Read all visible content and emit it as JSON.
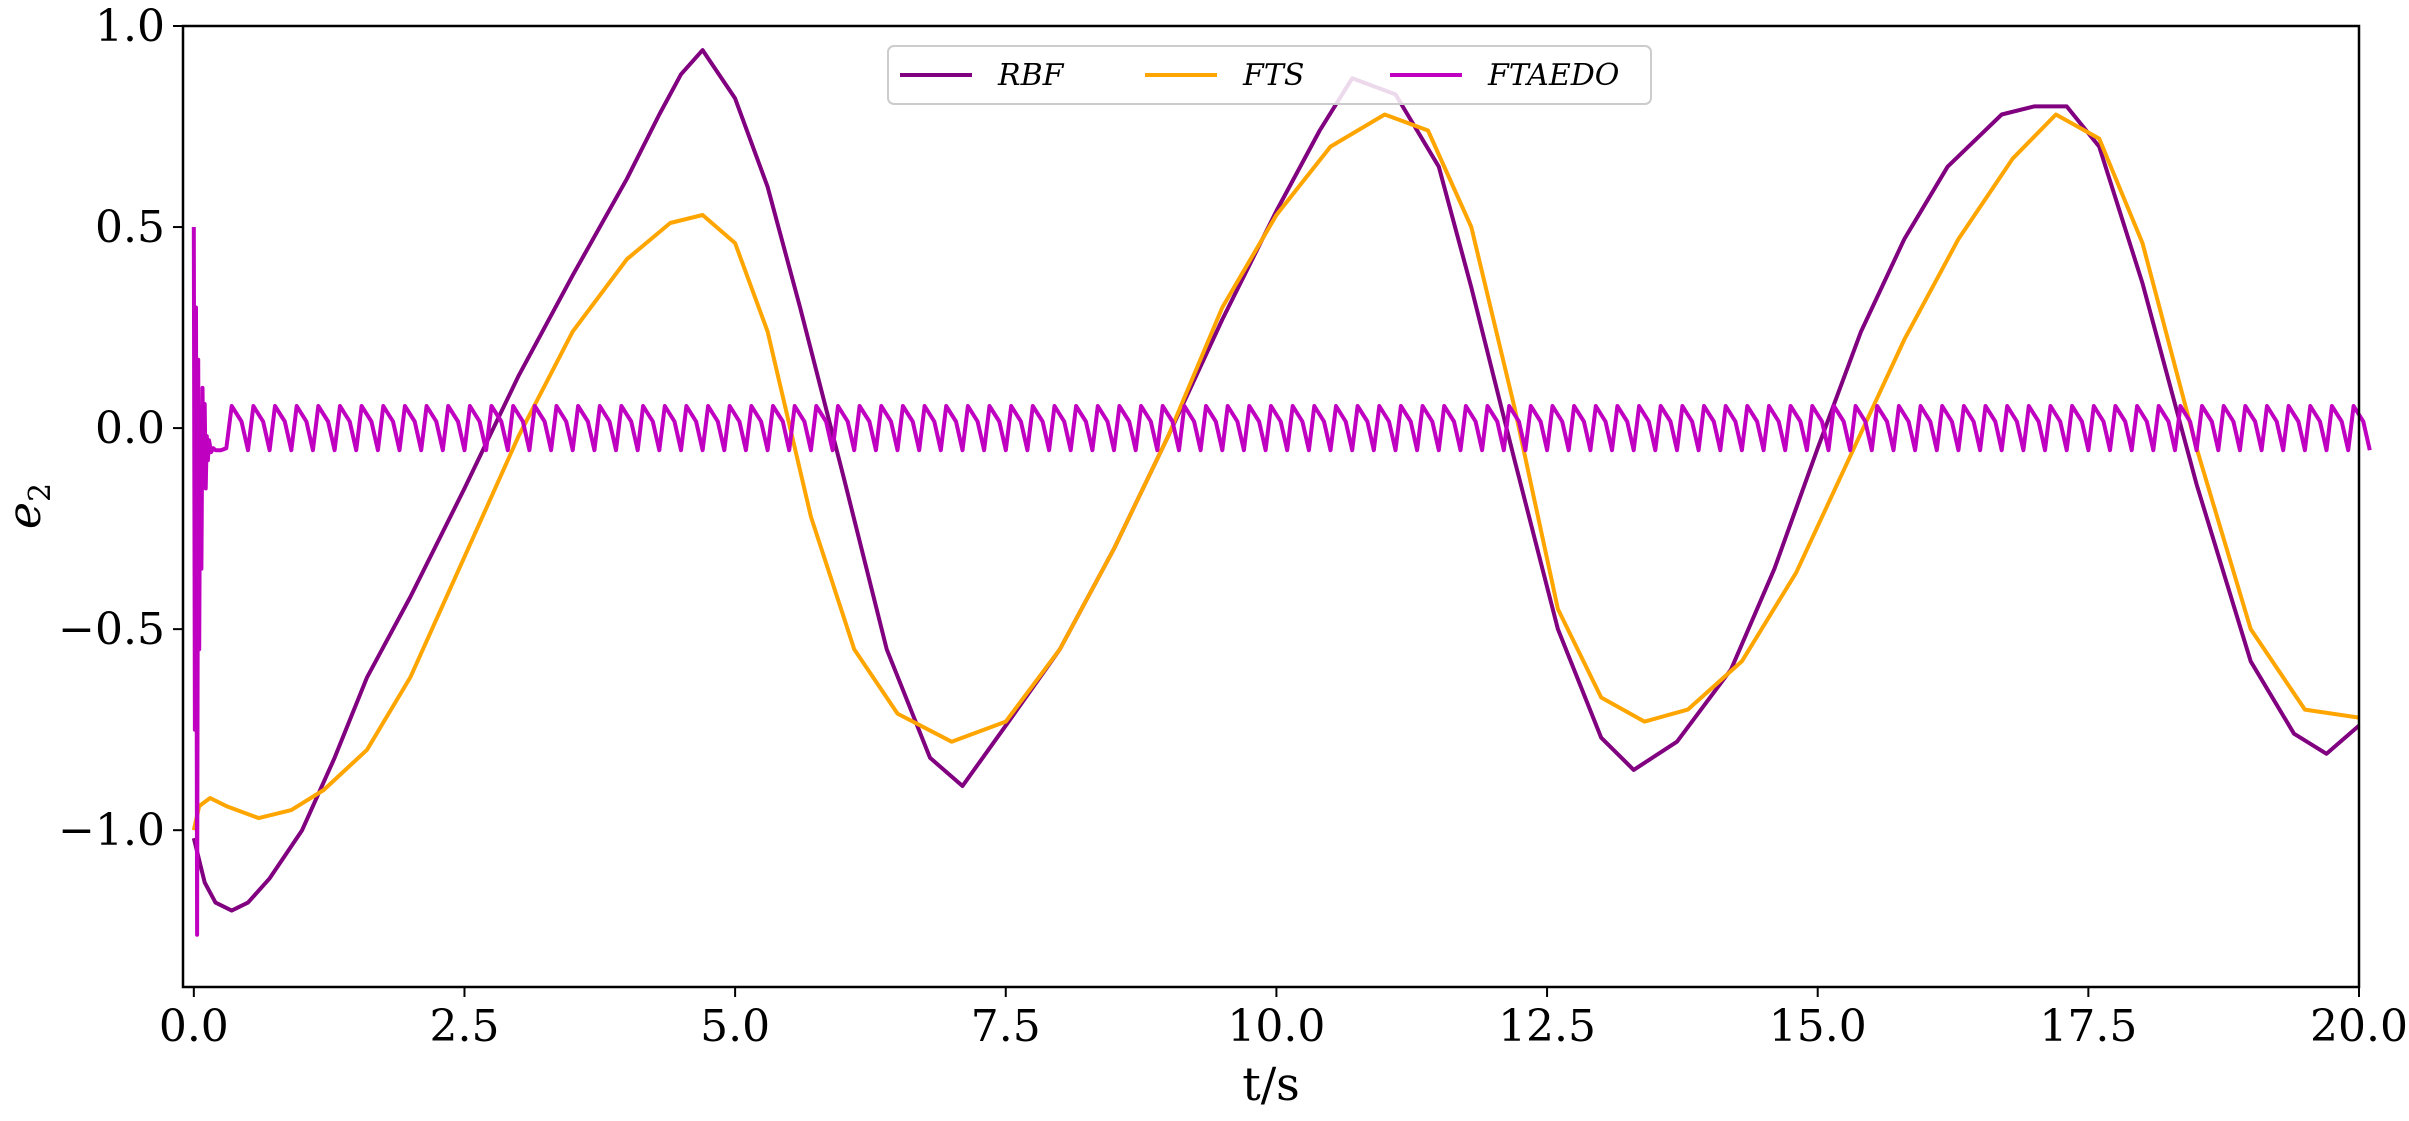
{
  "chart_data": {
    "type": "line",
    "title": "",
    "xlabel": "t/s",
    "ylabel_base": "e",
    "ylabel_sub": "2",
    "xlim": [
      -0.1,
      20.0
    ],
    "ylim": [
      -1.39,
      1.0
    ],
    "grid": false,
    "legend_placement": "top-center",
    "xticks": [
      0.0,
      2.5,
      5.0,
      7.5,
      10.0,
      12.5,
      15.0,
      17.5,
      20.0
    ],
    "xtick_labels": [
      "0.0",
      "2.5",
      "5.0",
      "7.5",
      "10.0",
      "12.5",
      "15.0",
      "17.5",
      "20.0"
    ],
    "yticks": [
      1.0,
      0.5,
      0.0,
      -0.5,
      -1.0
    ],
    "ytick_labels": [
      "1.0",
      "0.5",
      "0.0",
      "−0.5",
      "−1.0"
    ],
    "series": [
      {
        "name": "RBF",
        "color": "#800080",
        "x": [
          0.0,
          0.1,
          0.2,
          0.35,
          0.5,
          0.7,
          1.0,
          1.3,
          1.6,
          2.0,
          2.5,
          3.0,
          3.5,
          4.0,
          4.3,
          4.5,
          4.7,
          5.0,
          5.3,
          5.6,
          6.0,
          6.4,
          6.8,
          7.1,
          7.5,
          8.0,
          8.5,
          9.0,
          9.5,
          10.0,
          10.4,
          10.7,
          11.1,
          11.5,
          11.8,
          12.2,
          12.6,
          13.0,
          13.3,
          13.7,
          14.2,
          14.6,
          15.0,
          15.4,
          15.8,
          16.2,
          16.7,
          17.0,
          17.3,
          17.6,
          18.0,
          18.5,
          19.0,
          19.4,
          19.7,
          20.0
        ],
        "y": [
          -1.02,
          -1.13,
          -1.18,
          -1.2,
          -1.18,
          -1.12,
          -1.0,
          -0.82,
          -0.62,
          -0.42,
          -0.15,
          0.13,
          0.38,
          0.62,
          0.78,
          0.88,
          0.94,
          0.82,
          0.6,
          0.3,
          -0.12,
          -0.55,
          -0.82,
          -0.89,
          -0.74,
          -0.55,
          -0.3,
          -0.02,
          0.27,
          0.54,
          0.74,
          0.87,
          0.83,
          0.65,
          0.35,
          -0.08,
          -0.5,
          -0.77,
          -0.85,
          -0.78,
          -0.6,
          -0.35,
          -0.05,
          0.24,
          0.47,
          0.65,
          0.78,
          0.8,
          0.8,
          0.7,
          0.36,
          -0.14,
          -0.58,
          -0.76,
          -0.81,
          -0.74
        ]
      },
      {
        "name": "FTS",
        "color": "#ffa500",
        "x": [
          0.0,
          0.05,
          0.15,
          0.3,
          0.6,
          0.9,
          1.2,
          1.6,
          2.0,
          2.5,
          3.0,
          3.5,
          4.0,
          4.4,
          4.7,
          5.0,
          5.3,
          5.7,
          6.1,
          6.5,
          7.0,
          7.5,
          8.0,
          8.5,
          9.0,
          9.5,
          10.0,
          10.5,
          11.0,
          11.4,
          11.8,
          12.2,
          12.6,
          13.0,
          13.4,
          13.8,
          14.3,
          14.8,
          15.3,
          15.8,
          16.3,
          16.8,
          17.2,
          17.6,
          18.0,
          18.5,
          19.0,
          19.5,
          20.0
        ],
        "y": [
          -1.0,
          -0.94,
          -0.92,
          -0.94,
          -0.97,
          -0.95,
          -0.9,
          -0.8,
          -0.62,
          -0.32,
          -0.02,
          0.24,
          0.42,
          0.51,
          0.53,
          0.46,
          0.24,
          -0.22,
          -0.55,
          -0.71,
          -0.78,
          -0.73,
          -0.55,
          -0.3,
          -0.02,
          0.3,
          0.53,
          0.7,
          0.78,
          0.74,
          0.5,
          0.05,
          -0.45,
          -0.67,
          -0.73,
          -0.7,
          -0.58,
          -0.36,
          -0.07,
          0.22,
          0.47,
          0.67,
          0.78,
          0.72,
          0.46,
          -0.05,
          -0.5,
          -0.7,
          -0.72
        ]
      },
      {
        "name": "FTAEDO",
        "color": "#c000c0",
        "x_start": 0.0,
        "x_end": 20.0,
        "transient_end": 0.3,
        "amplitude": 0.055,
        "period": 0.2,
        "initial": {
          "x": [
            0.0,
            0.01,
            0.02,
            0.03,
            0.04,
            0.05,
            0.06,
            0.07,
            0.08,
            0.09,
            0.1,
            0.11,
            0.12,
            0.13,
            0.14,
            0.16,
            0.18,
            0.2,
            0.25,
            0.3
          ],
          "y": [
            0.5,
            -0.75,
            0.3,
            -1.26,
            0.17,
            -0.55,
            0.05,
            -0.35,
            0.1,
            -0.12,
            0.06,
            -0.15,
            -0.02,
            -0.08,
            -0.03,
            -0.06,
            -0.05,
            -0.055,
            -0.055,
            -0.05
          ]
        }
      }
    ]
  }
}
